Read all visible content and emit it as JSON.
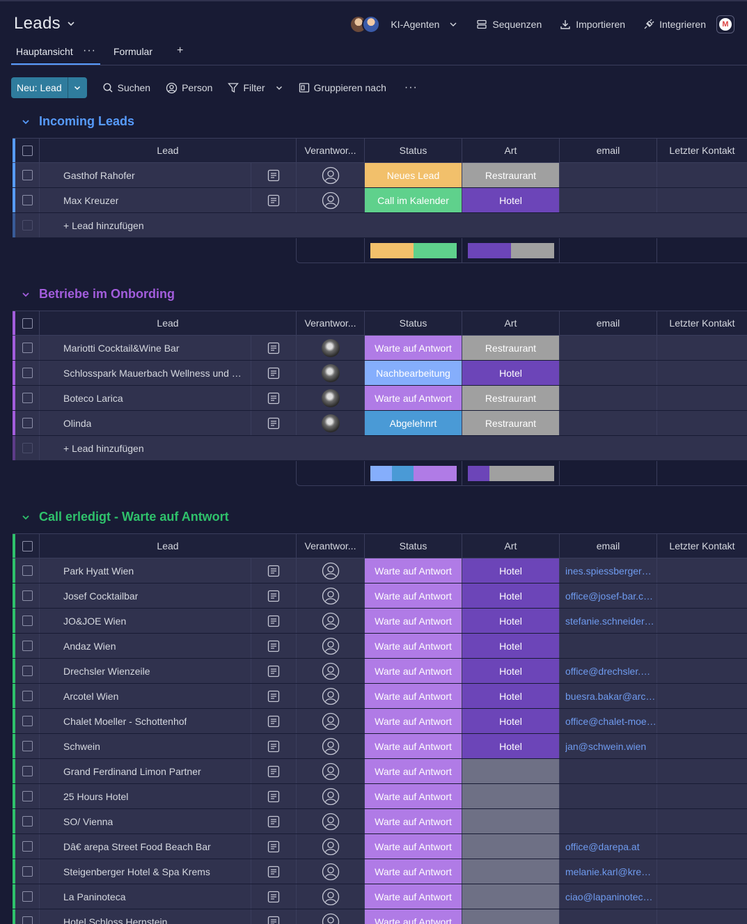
{
  "header": {
    "title": "Leads",
    "agents_label": "KI-Agenten",
    "sequences_label": "Sequenzen",
    "import_label": "Importieren",
    "integrate_label": "Integrieren",
    "gmail_letter": "M"
  },
  "tabs": {
    "main": "Hauptansicht",
    "main_more": "···",
    "form": "Formular",
    "add": "+"
  },
  "toolbar": {
    "new_label": "Neu: Lead",
    "search": "Suchen",
    "person": "Person",
    "filter": "Filter",
    "group_by": "Gruppieren nach",
    "more": "···"
  },
  "columns": {
    "lead": "Lead",
    "owner": "Verantwor...",
    "status": "Status",
    "art": "Art",
    "email": "email",
    "last_contact": "Letzter Kontakt"
  },
  "add_lead_label": "+ Lead hinzufügen",
  "colors": {
    "group1": "#579bfc",
    "group2": "#a25ddc",
    "group3": "#2fc16b",
    "neues_lead": "#f2c06b",
    "call": "#5fd18c",
    "warte": "#b07be6",
    "nachbearbeitung": "#85aefc",
    "abgelehnt": "#4a9ad6",
    "restraurant": "#a0a0a0",
    "hotel": "#6c45b8",
    "empty_art": "#6e7085"
  },
  "groups": [
    {
      "title": "Incoming Leads",
      "color": "#579bfc",
      "rows": [
        {
          "lead": "Gasthof Rahofer",
          "owner": "empty",
          "status": "Neues Lead",
          "status_color": "#f2c06b",
          "art": "Restraurant",
          "art_color": "#a0a0a0",
          "email": ""
        },
        {
          "lead": "Max Kreuzer",
          "owner": "empty",
          "status": "Call im Kalender",
          "status_color": "#5fd18c",
          "art": "Hotel",
          "art_color": "#6c45b8",
          "email": ""
        }
      ],
      "status_summary": [
        {
          "color": "#f2c06b",
          "share": 0.5
        },
        {
          "color": "#5fd18c",
          "share": 0.5
        }
      ],
      "art_summary": [
        {
          "color": "#6c45b8",
          "share": 0.5
        },
        {
          "color": "#a0a0a0",
          "share": 0.5
        }
      ]
    },
    {
      "title": "Betriebe im Onbording",
      "color": "#a25ddc",
      "rows": [
        {
          "lead": "Mariotti Cocktail&Wine Bar",
          "owner": "photo",
          "status": "Warte auf Antwort",
          "status_color": "#b07be6",
          "art": "Restraurant",
          "art_color": "#a0a0a0",
          "email": ""
        },
        {
          "lead": "Schlosspark Mauerbach Wellness und Spa",
          "owner": "photo",
          "status": "Nachbearbeitung",
          "status_color": "#85aefc",
          "art": "Hotel",
          "art_color": "#6c45b8",
          "email": ""
        },
        {
          "lead": "Boteco Larica",
          "owner": "photo",
          "status": "Warte auf Antwort",
          "status_color": "#b07be6",
          "art": "Restraurant",
          "art_color": "#a0a0a0",
          "email": ""
        },
        {
          "lead": "Olinda",
          "owner": "photo",
          "status": "Abgelehnrt",
          "status_color": "#4a9ad6",
          "art": "Restraurant",
          "art_color": "#a0a0a0",
          "email": ""
        }
      ],
      "status_summary": [
        {
          "color": "#85aefc",
          "share": 0.25
        },
        {
          "color": "#4a9ad6",
          "share": 0.25
        },
        {
          "color": "#b07be6",
          "share": 0.5
        }
      ],
      "art_summary": [
        {
          "color": "#6c45b8",
          "share": 0.25
        },
        {
          "color": "#a0a0a0",
          "share": 0.75
        }
      ]
    },
    {
      "title": "Call erledigt - Warte auf Antwort",
      "color": "#2fc16b",
      "rows": [
        {
          "lead": "Park Hyatt Wien",
          "owner": "empty",
          "status": "Warte auf Antwort",
          "status_color": "#b07be6",
          "art": "Hotel",
          "art_color": "#6c45b8",
          "email": "ines.spiessberger@hyatt.com"
        },
        {
          "lead": "Josef Cocktailbar",
          "owner": "empty",
          "status": "Warte auf Antwort",
          "status_color": "#b07be6",
          "art": "Hotel",
          "art_color": "#6c45b8",
          "email": "office@josef-bar.com"
        },
        {
          "lead": "JO&JOE Wien",
          "owner": "empty",
          "status": "Warte auf Antwort",
          "status_color": "#b07be6",
          "art": "Hotel",
          "art_color": "#6c45b8",
          "email": "stefanie.schneider@joandjoe.com"
        },
        {
          "lead": "Andaz Wien",
          "owner": "empty",
          "status": "Warte auf Antwort",
          "status_color": "#b07be6",
          "art": "Hotel",
          "art_color": "#6c45b8",
          "email": ""
        },
        {
          "lead": "Drechsler Wienzeile",
          "owner": "empty",
          "status": "Warte auf Antwort",
          "status_color": "#b07be6",
          "art": "Hotel",
          "art_color": "#6c45b8",
          "email": "office@drechsler.wien"
        },
        {
          "lead": "Arcotel Wien",
          "owner": "empty",
          "status": "Warte auf Antwort",
          "status_color": "#b07be6",
          "art": "Hotel",
          "art_color": "#6c45b8",
          "email": "buesra.bakar@arcotel.com"
        },
        {
          "lead": "Chalet Moeller - Schottenhof",
          "owner": "empty",
          "status": "Warte auf Antwort",
          "status_color": "#b07be6",
          "art": "Hotel",
          "art_color": "#6c45b8",
          "email": "office@chalet-moeller.at"
        },
        {
          "lead": "Schwein",
          "owner": "empty",
          "status": "Warte auf Antwort",
          "status_color": "#b07be6",
          "art": "Hotel",
          "art_color": "#6c45b8",
          "email": "jan@schwein.wien"
        },
        {
          "lead": "Grand Ferdinand Limon Partner",
          "owner": "empty",
          "status": "Warte auf Antwort",
          "status_color": "#b07be6",
          "art": "",
          "art_color": "#6e7085",
          "email": ""
        },
        {
          "lead": "25 Hours Hotel",
          "owner": "empty",
          "status": "Warte auf Antwort",
          "status_color": "#b07be6",
          "art": "",
          "art_color": "#6e7085",
          "email": ""
        },
        {
          "lead": "SO/ Vienna",
          "owner": "empty",
          "status": "Warte auf Antwort",
          "status_color": "#b07be6",
          "art": "",
          "art_color": "#6e7085",
          "email": ""
        },
        {
          "lead": "Dâ€ arepa Street Food Beach Bar",
          "owner": "empty",
          "status": "Warte auf Antwort",
          "status_color": "#b07be6",
          "art": "",
          "art_color": "#6e7085",
          "email": "office@darepa.at"
        },
        {
          "lead": "Steigenberger Hotel & Spa Krems",
          "owner": "empty",
          "status": "Warte auf Antwort",
          "status_color": "#b07be6",
          "art": "",
          "art_color": "#6e7085",
          "email": "melanie.karl@krems.steigenberger.at"
        },
        {
          "lead": "La Paninoteca",
          "owner": "empty",
          "status": "Warte auf Antwort",
          "status_color": "#b07be6",
          "art": "",
          "art_color": "#6e7085",
          "email": "ciao@lapaninoteca.at"
        },
        {
          "lead": "Hotel Schloss Hernstein",
          "owner": "empty",
          "status": "Warte auf Antwort",
          "status_color": "#b07be6",
          "art": "",
          "art_color": "#6e7085",
          "email": ""
        }
      ]
    }
  ]
}
